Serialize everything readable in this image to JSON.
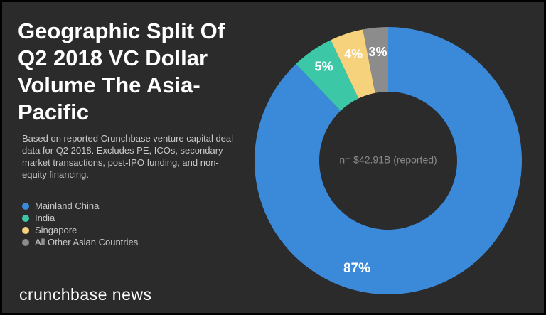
{
  "chart_data": {
    "type": "pie",
    "title": "Geographic Split Of Q2 2018 VC Dollar Volume The Asia-Pacific",
    "subtitle": "Based on reported Crunchbase venture capital deal data for Q2 2018. Excludes PE, ICOs, secondary market transactions, post-IPO funding, and non-equity financing.",
    "center_label": "n= $42.91B (reported)",
    "categories": [
      "Mainland China",
      "India",
      "Singapore",
      "All Other Asian Countries"
    ],
    "values": [
      87,
      5,
      4,
      3
    ],
    "value_labels": [
      "87%",
      "5%",
      "4%",
      "3%"
    ],
    "colors": [
      "#3b8ad9",
      "#3cc8a6",
      "#f7d27c",
      "#8c8c8c"
    ],
    "legend_position": "left",
    "donut": true
  },
  "brand": "crunchbase news"
}
